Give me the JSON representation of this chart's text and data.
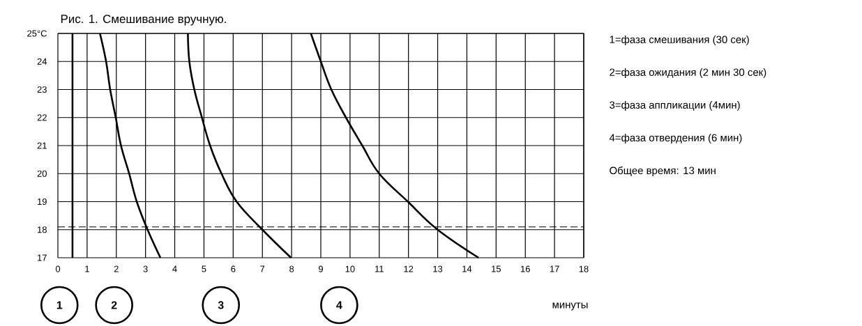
{
  "chart_data": {
    "type": "line",
    "title": "Рис. 1. Смешивание вручную.",
    "xlabel": "минуты",
    "xlim": [
      0,
      18
    ],
    "xticks": [
      0,
      1,
      2,
      3,
      4,
      5,
      6,
      7,
      8,
      9,
      10,
      11,
      12,
      13,
      14,
      15,
      16,
      17,
      18
    ],
    "ylim": [
      17,
      25
    ],
    "yticks": [
      17,
      18,
      19,
      20,
      21,
      22,
      23,
      24,
      {
        "value": 25,
        "label": "25°C"
      }
    ],
    "grid": true,
    "color": "#000000",
    "series": [
      {
        "x": [
          0.5,
          0.5
        ],
        "values": [
          17,
          25
        ]
      },
      {
        "x": [
          1.44,
          1.65,
          1.79,
          1.98,
          2.16,
          2.44,
          2.7,
          3.07,
          3.51
        ],
        "values": [
          25,
          24,
          23,
          22,
          21,
          20,
          19,
          18,
          17
        ]
      },
      {
        "x": [
          4.45,
          4.5,
          4.67,
          4.93,
          5.21,
          5.6,
          6.12,
          7.0,
          7.98
        ],
        "values": [
          25,
          24,
          23,
          22,
          21,
          20,
          19,
          18,
          17
        ]
      },
      {
        "x": [
          8.66,
          9.0,
          9.36,
          9.86,
          10.42,
          11.0,
          11.98,
          13.0,
          14.4
        ],
        "values": [
          25,
          24,
          23,
          22,
          21,
          20,
          19,
          18,
          17
        ]
      }
    ],
    "ref_lines": [
      {
        "axis": "y",
        "value": 18.1,
        "line_style": "dashed"
      }
    ],
    "annotations": [
      "1",
      "2",
      "3",
      "4",
      "1=фаза смешивания (30 сек)",
      "2=фаза ожидания (2 мин 30 сек)",
      "3=фаза аппликации (4мин)",
      "4=фаза отвердения (6 мин)",
      "Общее время: 13 мин"
    ]
  }
}
